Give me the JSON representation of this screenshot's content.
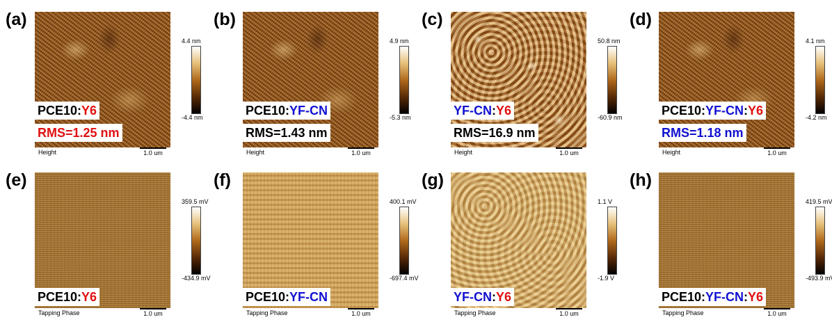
{
  "panels": [
    {
      "id": "(a)",
      "type": "height",
      "labels": [
        [
          {
            "t": "PCE10:",
            "c": "k"
          },
          {
            "t": "Y6",
            "c": "r"
          }
        ],
        [
          {
            "t": "RMS=1.25 nm",
            "c": "r"
          }
        ]
      ],
      "cmax": "4.4 nm",
      "cmin": "-4.4 nm",
      "mode": "Height",
      "scale": "1.0 um"
    },
    {
      "id": "(b)",
      "type": "height",
      "labels": [
        [
          {
            "t": "PCE10:",
            "c": "k"
          },
          {
            "t": "YF-CN",
            "c": "b"
          }
        ],
        [
          {
            "t": "RMS=1.43 nm",
            "c": "k"
          }
        ]
      ],
      "cmax": "4.9 nm",
      "cmin": "-5.3 nm",
      "mode": "Height",
      "scale": "1.0 um"
    },
    {
      "id": "(c)",
      "type": "height c",
      "labels": [
        [
          {
            "t": "YF-CN",
            "c": "b"
          },
          {
            "t": ":",
            "c": "k"
          },
          {
            "t": "Y6",
            "c": "r"
          }
        ],
        [
          {
            "t": "RMS=16.9 nm",
            "c": "k"
          }
        ]
      ],
      "cmax": "50.8 nm",
      "cmin": "-60.9 nm",
      "mode": "Height",
      "scale": "1.0 um"
    },
    {
      "id": "(d)",
      "type": "height",
      "labels": [
        [
          {
            "t": "PCE10:",
            "c": "k"
          },
          {
            "t": "YF-CN",
            "c": "b"
          },
          {
            "t": ":",
            "c": "k"
          },
          {
            "t": "Y6",
            "c": "r"
          }
        ],
        [
          {
            "t": "RMS=1.18 nm",
            "c": "b"
          }
        ]
      ],
      "cmax": "4.1 nm",
      "cmin": "-4.2 nm",
      "mode": "Height",
      "scale": "1.0 um"
    },
    {
      "id": "(e)",
      "type": "phase",
      "labels": [
        [
          {
            "t": "PCE10:",
            "c": "k"
          },
          {
            "t": "Y6",
            "c": "r"
          }
        ]
      ],
      "cmax": "359.5 mV",
      "cmin": "-434.9 mV",
      "mode": "Tapping Phase",
      "scale": "1.0 um"
    },
    {
      "id": "(f)",
      "type": "phase f",
      "labels": [
        [
          {
            "t": "PCE10:",
            "c": "k"
          },
          {
            "t": "YF-CN",
            "c": "b"
          }
        ]
      ],
      "cmax": "400.1 mV",
      "cmin": "-697.4 mV",
      "mode": "Tapping Phase",
      "scale": "1.0 um"
    },
    {
      "id": "(g)",
      "type": "phase g",
      "labels": [
        [
          {
            "t": "YF-CN",
            "c": "b"
          },
          {
            "t": ":",
            "c": "k"
          },
          {
            "t": "Y6",
            "c": "r"
          }
        ]
      ],
      "cmax": "1.1 V",
      "cmin": "-1.9 V",
      "mode": "Tapping Phase",
      "scale": "1.0 um"
    },
    {
      "id": "(h)",
      "type": "phase",
      "labels": [
        [
          {
            "t": "PCE10:",
            "c": "k"
          },
          {
            "t": "YF-CN",
            "c": "b"
          },
          {
            "t": ":",
            "c": "k"
          },
          {
            "t": "Y6",
            "c": "r"
          }
        ]
      ],
      "cmax": "419.5 mV",
      "cmin": "-493.9 mV",
      "mode": "Tapping Phase",
      "scale": "1.0 um"
    }
  ],
  "colors": {
    "k": "#000000",
    "r": "#e01010",
    "b": "#1010d0"
  }
}
